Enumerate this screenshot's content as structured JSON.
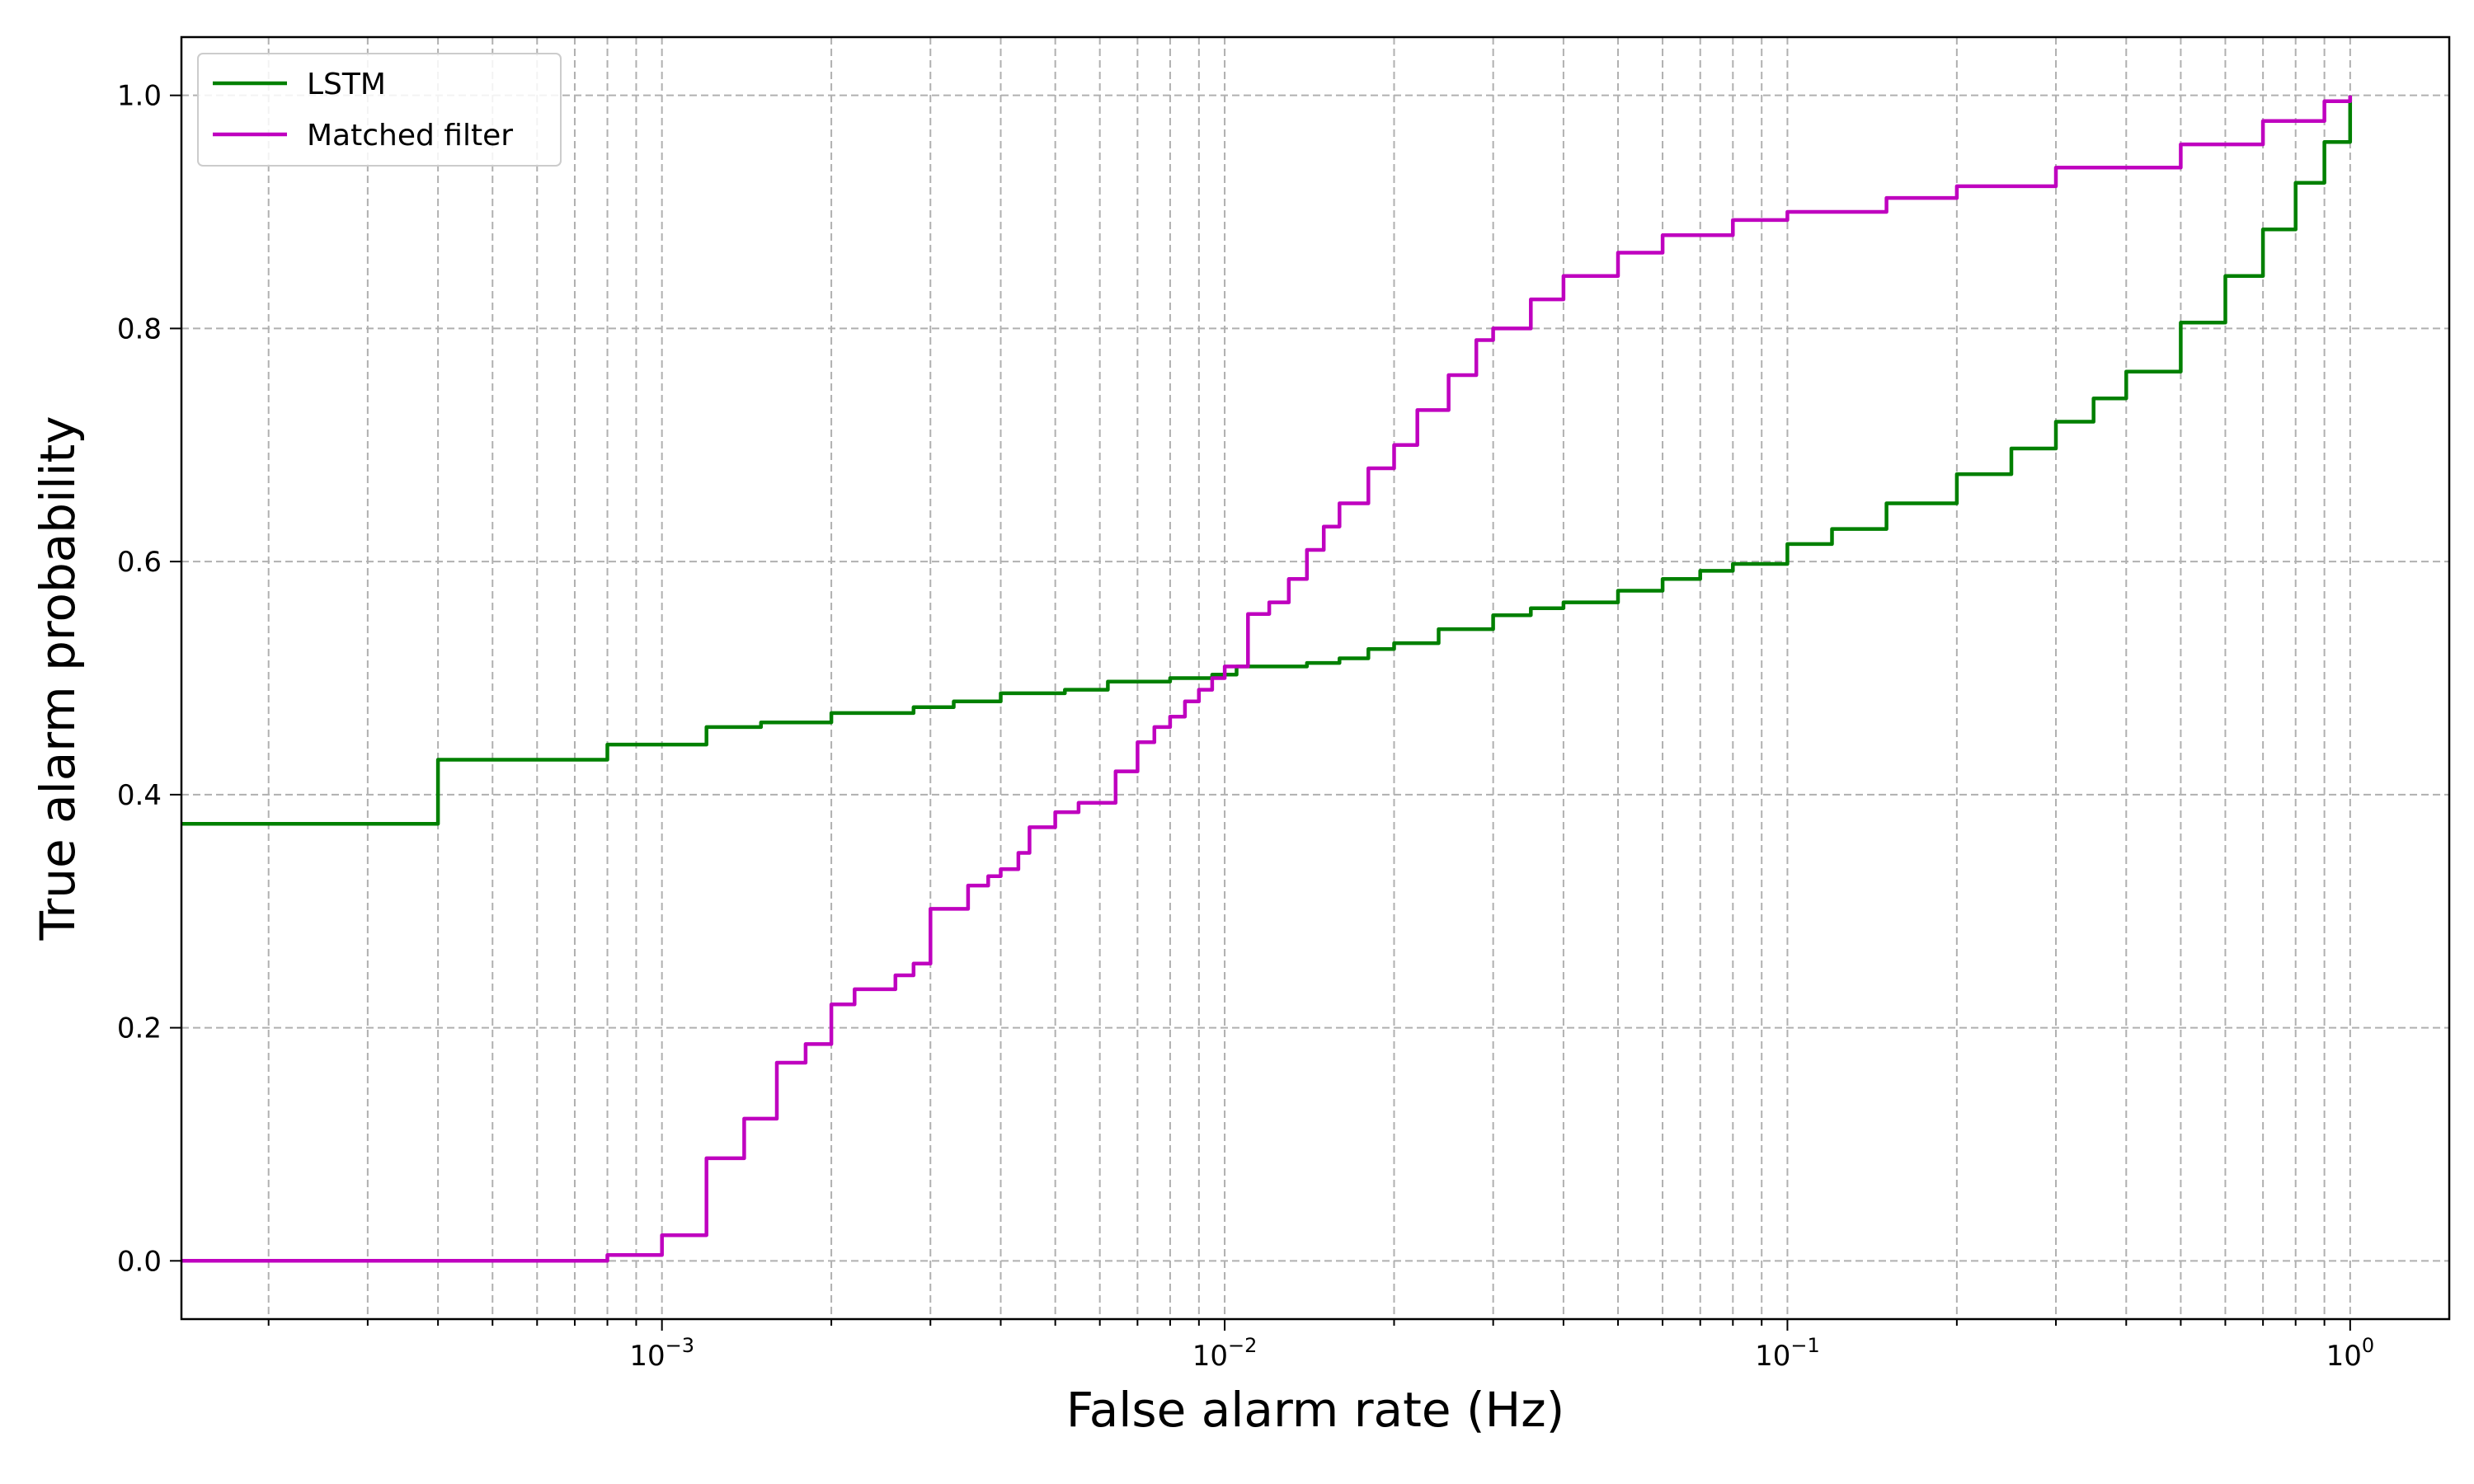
{
  "chart_data": {
    "type": "line",
    "title": "",
    "xlabel": "False alarm rate (Hz)",
    "ylabel": "True alarm probability",
    "xscale": "log",
    "xlim": [
      0.00014,
      1.5
    ],
    "ylim": [
      -0.05,
      1.05
    ],
    "grid": {
      "major": true,
      "minor_x": true,
      "style": "dashed"
    },
    "legend_position": "upper-left",
    "x_ticks": [
      {
        "value": 0.001,
        "base": "10",
        "exp": "−3"
      },
      {
        "value": 0.01,
        "base": "10",
        "exp": "−2"
      },
      {
        "value": 0.1,
        "base": "10",
        "exp": "−1"
      },
      {
        "value": 1,
        "base": "10",
        "exp": "0"
      }
    ],
    "y_ticks": [
      {
        "value": 0.0,
        "label": "0.0"
      },
      {
        "value": 0.2,
        "label": "0.2"
      },
      {
        "value": 0.4,
        "label": "0.4"
      },
      {
        "value": 0.6,
        "label": "0.6"
      },
      {
        "value": 0.8,
        "label": "0.8"
      },
      {
        "value": 1.0,
        "label": "1.0"
      }
    ],
    "series": [
      {
        "name": "LSTM",
        "color": "#008000",
        "step": true,
        "x": [
          0.00014,
          0.0004,
          0.0008,
          0.0012,
          0.0015,
          0.002,
          0.0028,
          0.0033,
          0.004,
          0.0052,
          0.0062,
          0.008,
          0.0095,
          0.0105,
          0.014,
          0.016,
          0.018,
          0.02,
          0.024,
          0.03,
          0.035,
          0.04,
          0.05,
          0.06,
          0.07,
          0.08,
          0.1,
          0.12,
          0.15,
          0.2,
          0.25,
          0.3,
          0.35,
          0.4,
          0.5,
          0.6,
          0.7,
          0.8,
          0.9,
          1.0
        ],
        "y": [
          0.375,
          0.43,
          0.443,
          0.458,
          0.462,
          0.47,
          0.475,
          0.48,
          0.487,
          0.49,
          0.497,
          0.5,
          0.503,
          0.51,
          0.513,
          0.517,
          0.525,
          0.53,
          0.542,
          0.554,
          0.56,
          0.565,
          0.575,
          0.585,
          0.592,
          0.598,
          0.615,
          0.628,
          0.65,
          0.675,
          0.697,
          0.72,
          0.74,
          0.763,
          0.805,
          0.845,
          0.885,
          0.925,
          0.96,
          1.0
        ]
      },
      {
        "name": "Matched filter",
        "color": "#bf00bf",
        "step": true,
        "x": [
          0.00014,
          0.0008,
          0.001,
          0.0012,
          0.0014,
          0.0016,
          0.0018,
          0.002,
          0.0022,
          0.0026,
          0.0028,
          0.003,
          0.0035,
          0.0038,
          0.004,
          0.0043,
          0.0045,
          0.005,
          0.0055,
          0.0064,
          0.007,
          0.0075,
          0.008,
          0.0085,
          0.009,
          0.0095,
          0.01,
          0.011,
          0.012,
          0.013,
          0.014,
          0.015,
          0.016,
          0.018,
          0.02,
          0.022,
          0.025,
          0.028,
          0.03,
          0.035,
          0.04,
          0.05,
          0.06,
          0.08,
          0.1,
          0.15,
          0.2,
          0.3,
          0.5,
          0.7,
          0.9,
          1.0
        ],
        "y": [
          0.0,
          0.005,
          0.022,
          0.088,
          0.122,
          0.17,
          0.186,
          0.22,
          0.233,
          0.245,
          0.255,
          0.302,
          0.322,
          0.33,
          0.336,
          0.35,
          0.372,
          0.385,
          0.393,
          0.42,
          0.445,
          0.458,
          0.467,
          0.48,
          0.49,
          0.5,
          0.51,
          0.555,
          0.565,
          0.585,
          0.61,
          0.63,
          0.65,
          0.68,
          0.7,
          0.73,
          0.76,
          0.79,
          0.8,
          0.825,
          0.845,
          0.865,
          0.88,
          0.893,
          0.9,
          0.912,
          0.922,
          0.938,
          0.958,
          0.978,
          0.995,
          1.0
        ]
      }
    ]
  }
}
